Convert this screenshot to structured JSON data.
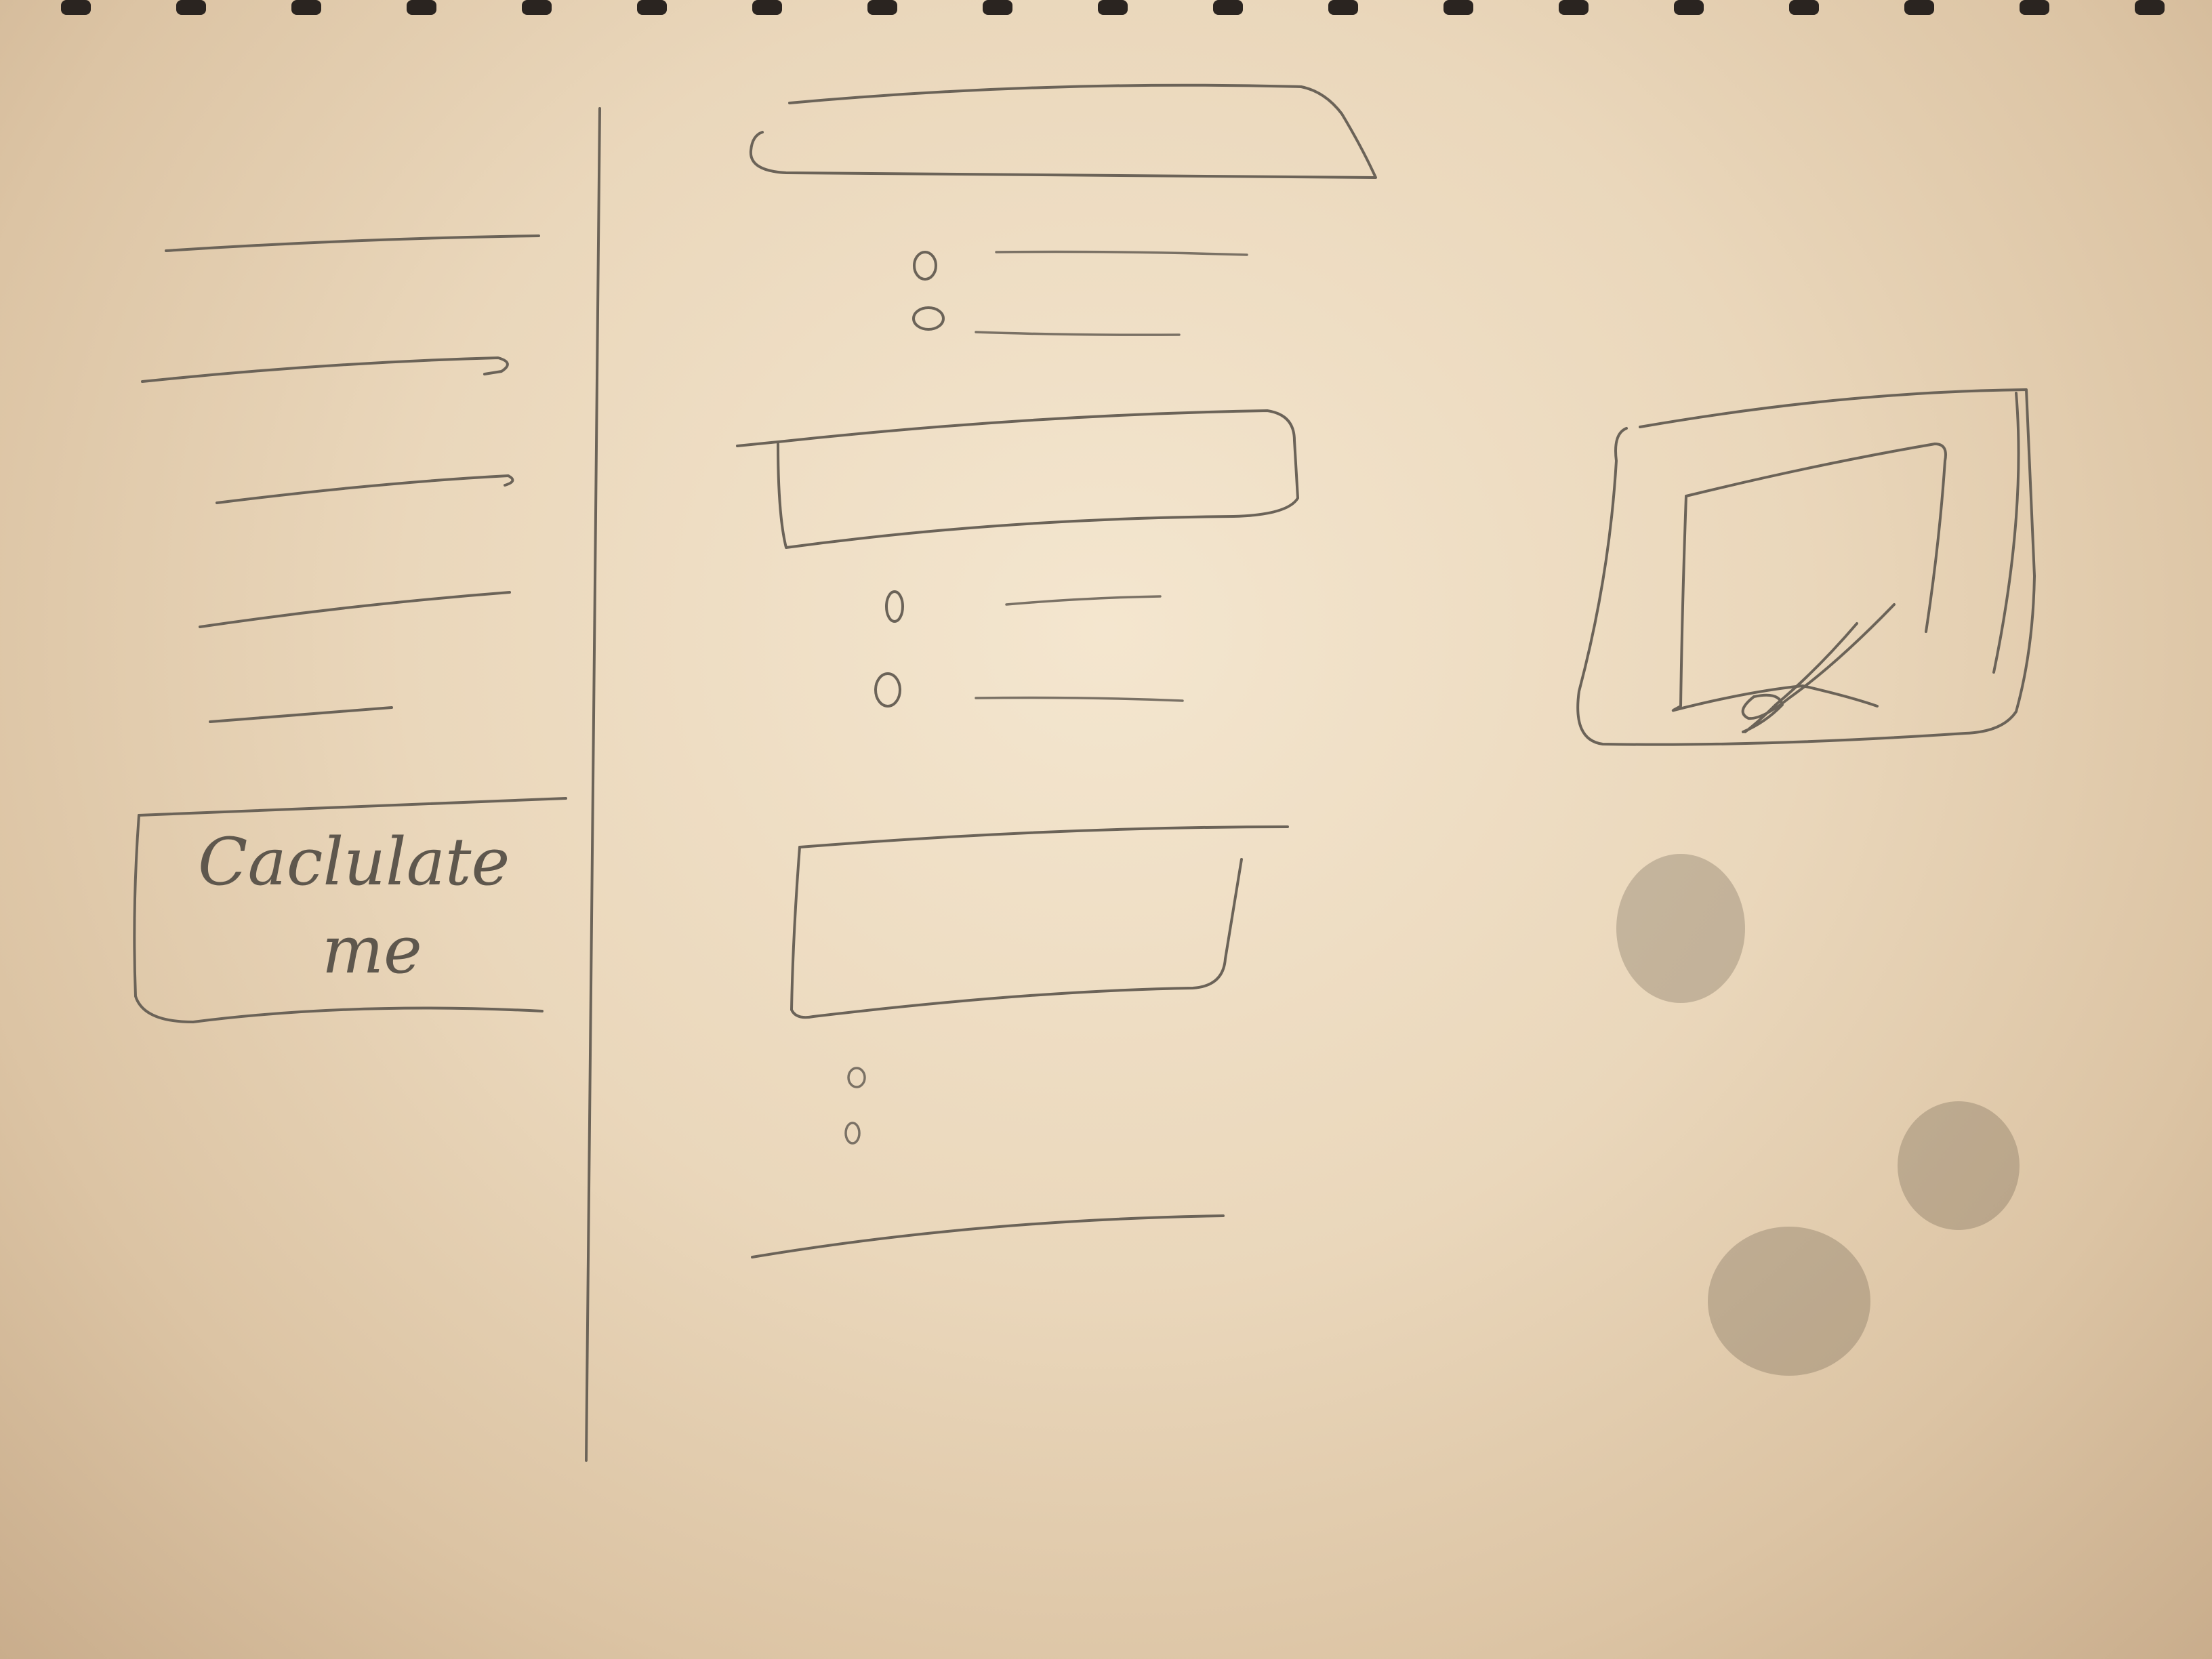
{
  "calculate_button": {
    "label_line1": "Caclulate",
    "label_line2": "me"
  },
  "icons": {
    "preview": "image-with-pen-icon",
    "radio": "radio-option-icon"
  }
}
